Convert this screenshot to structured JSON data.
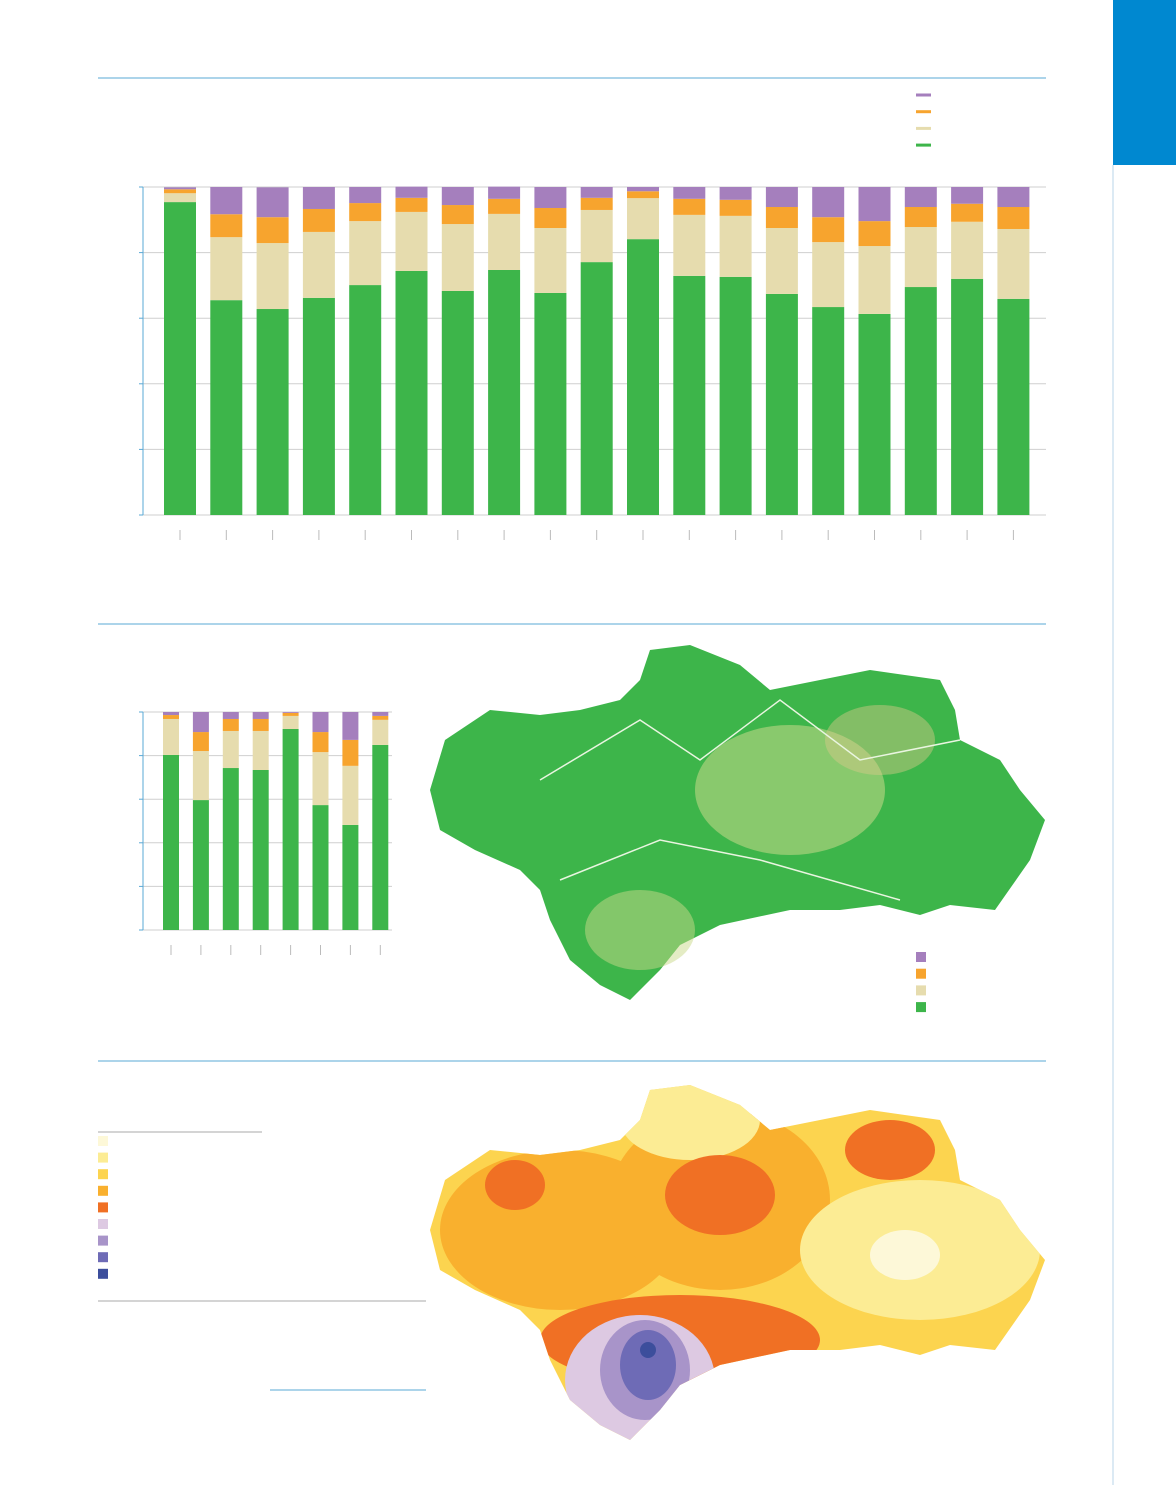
{
  "chart_data": [
    {
      "type": "stacked_bar",
      "categories": [
        null,
        null,
        null,
        null,
        null,
        null,
        null,
        null,
        null,
        null,
        null,
        null,
        null,
        null,
        null,
        null,
        null,
        null,
        null
      ],
      "series": [
        {
          "color": "#3db54a",
          "values": [
            95.4,
            65.5,
            62.8,
            66.2,
            70.1,
            74.4,
            68.3,
            74.7,
            67.7,
            77.1,
            84.1,
            72.9,
            72.6,
            67.4,
            63.4,
            61.3,
            69.5,
            72.0,
            65.9
          ]
        },
        {
          "color": "#e6dcae",
          "values": [
            2.7,
            19.2,
            20.1,
            20.1,
            19.5,
            18.0,
            20.4,
            17.1,
            19.8,
            15.9,
            12.5,
            18.6,
            18.6,
            20.1,
            19.8,
            20.7,
            18.3,
            17.4,
            21.3
          ]
        },
        {
          "color": "#f7a42e",
          "values": [
            1.2,
            7.0,
            7.9,
            7.0,
            5.5,
            4.3,
            5.8,
            4.6,
            6.1,
            3.7,
            2.1,
            4.9,
            4.9,
            6.4,
            7.6,
            7.6,
            6.1,
            5.5,
            6.7
          ]
        },
        {
          "color": "#a57fbd",
          "values": [
            0.6,
            8.3,
            9.1,
            6.7,
            4.9,
            3.4,
            5.5,
            3.7,
            6.4,
            3.3,
            1.3,
            3.6,
            3.9,
            6.1,
            9.2,
            10.4,
            6.1,
            5.1,
            6.1
          ]
        }
      ],
      "ylim": [
        0,
        100
      ],
      "yticks": [
        0,
        20,
        40,
        60,
        80,
        100
      ],
      "grid": true,
      "legend": "top-right"
    },
    {
      "type": "stacked_bar",
      "categories": [
        null,
        null,
        null,
        null,
        null,
        null,
        null,
        null
      ],
      "series": [
        {
          "color": "#3db54a",
          "values": [
            80.3,
            59.6,
            74.3,
            73.4,
            92.2,
            57.3,
            48.2,
            84.9
          ]
        },
        {
          "color": "#e6dcae",
          "values": [
            16.5,
            22.5,
            17.0,
            17.9,
            6.0,
            24.3,
            27.1,
            11.5
          ]
        },
        {
          "color": "#f7a42e",
          "values": [
            1.8,
            8.7,
            5.5,
            5.5,
            1.4,
            9.2,
            11.9,
            1.8
          ]
        },
        {
          "color": "#a57fbd",
          "values": [
            1.4,
            9.2,
            3.2,
            3.2,
            0.4,
            9.2,
            12.8,
            1.8
          ]
        }
      ],
      "ylim": [
        0,
        100
      ],
      "yticks": [
        0,
        20,
        40,
        60,
        80,
        100
      ],
      "grid": true,
      "legend": "bottom-right"
    }
  ],
  "map": {
    "legend_colors": [
      "#fdf8d8",
      "#fcec94",
      "#fcd44f",
      "#f9b02e",
      "#f07024",
      "#ddc9e2",
      "#a894c9",
      "#6e6bb6",
      "#3c4e9c"
    ]
  }
}
